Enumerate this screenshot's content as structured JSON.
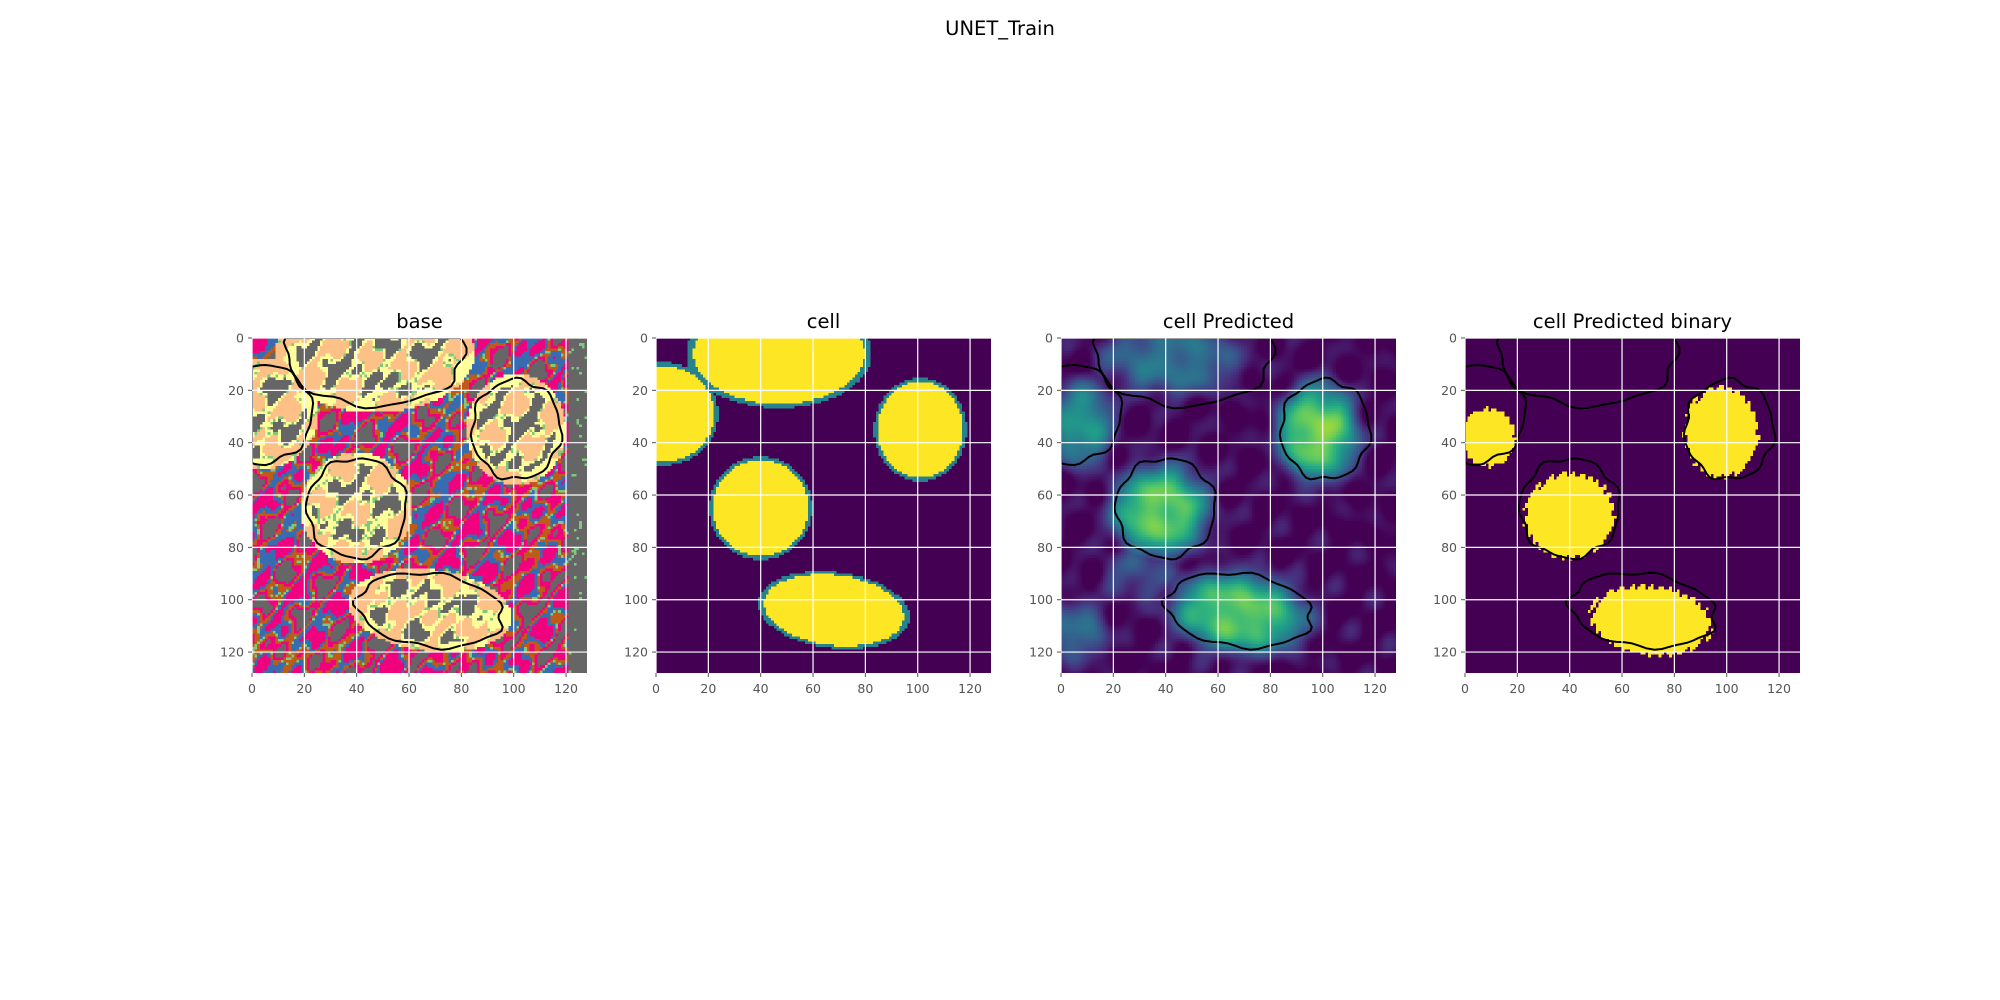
{
  "figure": {
    "suptitle": "UNET_Train"
  },
  "chart_data": [
    {
      "type": "heatmap",
      "kind": "base",
      "title": "base",
      "xlim": [
        0,
        128
      ],
      "ylim": [
        128,
        0
      ],
      "xticks": [
        0,
        20,
        40,
        60,
        80,
        100,
        120
      ],
      "yticks": [
        0,
        20,
        40,
        60,
        80,
        100,
        120
      ],
      "grid": true,
      "colormap": "Accent (categorical)",
      "palette": [
        "#f0027f",
        "#bf5b17",
        "#386cb0",
        "#666666",
        "#fdc086",
        "#ffff99",
        "#7fc97f",
        "#beaed4"
      ],
      "contours": true
    },
    {
      "type": "heatmap",
      "kind": "mask",
      "title": "cell",
      "xlim": [
        0,
        128
      ],
      "ylim": [
        128,
        0
      ],
      "xticks": [
        0,
        20,
        40,
        60,
        80,
        100,
        120
      ],
      "yticks": [
        0,
        20,
        40,
        60,
        80,
        100,
        120
      ],
      "grid": true,
      "colormap": "viridis",
      "contours": false
    },
    {
      "type": "heatmap",
      "kind": "pred",
      "title": "cell Predicted",
      "xlim": [
        0,
        128
      ],
      "ylim": [
        128,
        0
      ],
      "xticks": [
        0,
        20,
        40,
        60,
        80,
        100,
        120
      ],
      "yticks": [
        0,
        20,
        40,
        60,
        80,
        100,
        120
      ],
      "grid": true,
      "colormap": "viridis",
      "contours": true
    },
    {
      "type": "heatmap",
      "kind": "binary",
      "title": "cell Predicted binary",
      "xlim": [
        0,
        128
      ],
      "ylim": [
        128,
        0
      ],
      "xticks": [
        0,
        20,
        40,
        60,
        80,
        100,
        120
      ],
      "yticks": [
        0,
        20,
        40,
        60,
        80,
        100,
        120
      ],
      "grid": true,
      "colormap": "viridis",
      "contours": true
    }
  ],
  "colors": {
    "background_dark": "#440154",
    "foreground_bright": "#fde725",
    "contour": "#000000",
    "grid": "#ffffff"
  }
}
